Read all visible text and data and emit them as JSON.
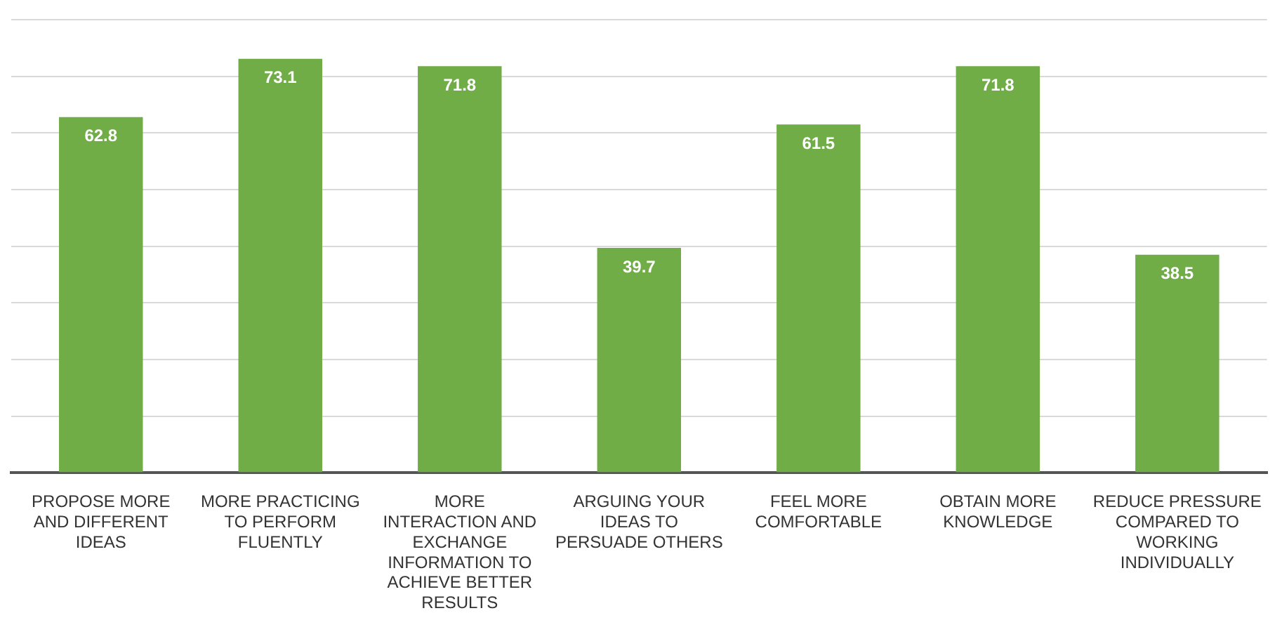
{
  "chart_data": {
    "type": "bar",
    "categories": [
      "PROPOSE MORE AND DIFFERENT IDEAS",
      "MORE PRACTICING TO PERFORM FLUENTLY",
      "MORE INTERACTION AND EXCHANGE INFORMATION TO ACHIEVE BETTER RESULTS",
      "ARGUING YOUR IDEAS TO PERSUADE OTHERS",
      "FEEL MORE COMFORTABLE",
      "OBTAIN MORE KNOWLEDGE",
      "REDUCE PRESSURE COMPARED TO WORKING INDIVIDUALLY"
    ],
    "values": [
      62.8,
      73.1,
      71.8,
      39.7,
      61.5,
      71.8,
      38.5
    ],
    "color": "#70ad47",
    "ylim": [
      0,
      80
    ],
    "yticks": [
      {
        "value": 0,
        "label": null
      },
      {
        "value": 10,
        "label": null
      },
      {
        "value": 20,
        "label": null
      },
      {
        "value": 30,
        "label": null
      },
      {
        "value": 40,
        "label": null
      },
      {
        "value": 50,
        "label": null
      },
      {
        "value": 60,
        "label": null
      },
      {
        "value": 70,
        "label": null
      },
      {
        "value": 80,
        "label": null
      }
    ],
    "grid": "y",
    "tick_labels": "x",
    "data_labels": true
  }
}
